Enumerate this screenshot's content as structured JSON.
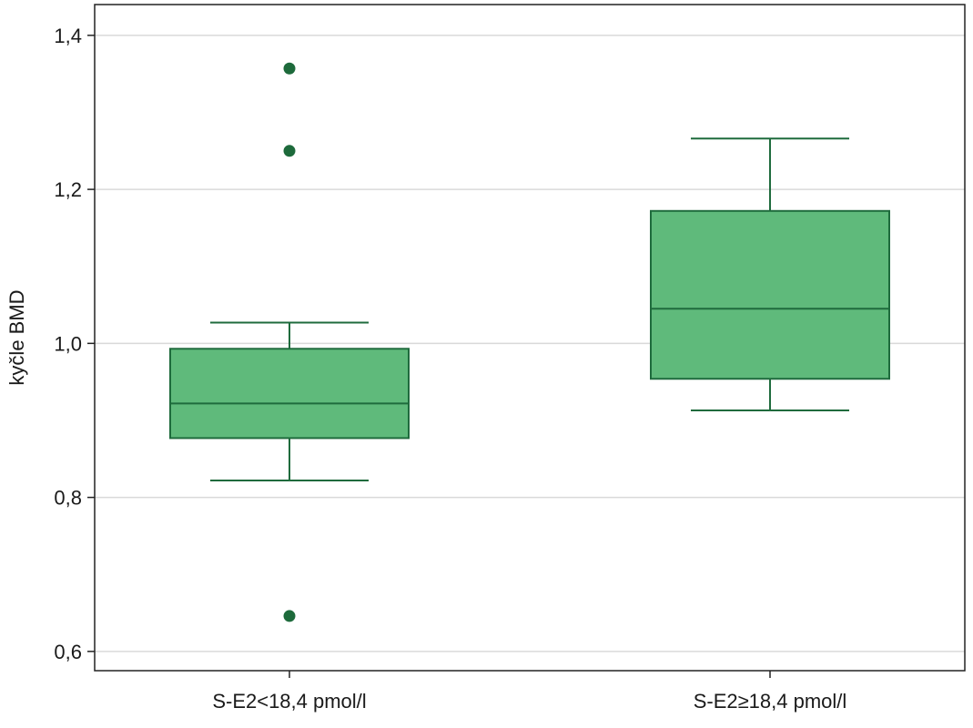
{
  "chart_data": {
    "type": "boxplot",
    "title": "",
    "xlabel": "",
    "ylabel": "kyčle BMD",
    "ylim": [
      0.575,
      1.44
    ],
    "yticks": [
      {
        "value": 0.6,
        "label": "0,6"
      },
      {
        "value": 0.8,
        "label": "0,8"
      },
      {
        "value": 1.0,
        "label": "1,0"
      },
      {
        "value": 1.2,
        "label": "1,2"
      },
      {
        "value": 1.4,
        "label": "1,4"
      }
    ],
    "grid": true,
    "categories": [
      "S-E2<18,4 pmol/l",
      "S-E2≥18,4 pmol/l"
    ],
    "boxes": [
      {
        "category": "S-E2<18,4 pmol/l",
        "whisker_low": 0.822,
        "q1": 0.877,
        "median": 0.922,
        "q3": 0.993,
        "whisker_high": 1.027,
        "outliers": [
          1.357,
          1.25,
          0.646
        ]
      },
      {
        "category": "S-E2≥18,4 pmol/l",
        "whisker_low": 0.913,
        "q1": 0.954,
        "median": 1.045,
        "q3": 1.172,
        "whisker_high": 1.266,
        "outliers": []
      }
    ],
    "colors": {
      "box_fill": "#5fba7b",
      "box_stroke": "#1f6b3d",
      "outlier": "#1d6a3b",
      "grid": "#d9d9d9",
      "frame": "#222222"
    }
  }
}
